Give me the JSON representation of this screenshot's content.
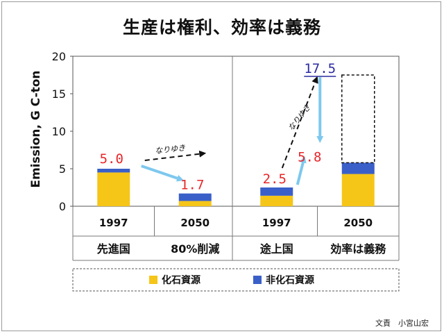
{
  "title": "生産は権利、効率は義務",
  "credit": "文責　小宮山宏",
  "colors": {
    "fossil": "#f5c518",
    "non_fossil": "#3a5fc8",
    "arrow_blue": "#7ec8ee",
    "value_red": "#e8262a",
    "value_blue": "#2a2aa0"
  },
  "chart_data": {
    "type": "bar",
    "stacked": true,
    "ylabel": "Emission,  G C-ton",
    "ylim": [
      0,
      20
    ],
    "yticks": [
      "0",
      "5",
      "10",
      "15",
      "20"
    ],
    "grid": false,
    "categories": [
      "1997",
      "2050",
      "1997",
      "2050"
    ],
    "groups": [
      "先進国",
      "80%削減",
      "途上国",
      "効率は義務"
    ],
    "series": [
      {
        "name": "化石資源",
        "values": [
          4.5,
          0.7,
          1.4,
          4.3
        ]
      },
      {
        "name": "非化石資源",
        "values": [
          0.5,
          1.0,
          1.1,
          1.5
        ]
      }
    ],
    "value_labels": [
      "5.0",
      "1.7",
      "2.5",
      "5.8",
      "17.5"
    ],
    "projection_total": 17.5,
    "annotations": [
      "なりゆき",
      "なりゆき"
    ],
    "legend": [
      "化石資源",
      "非化石資源"
    ],
    "legend_position": "bottom"
  }
}
